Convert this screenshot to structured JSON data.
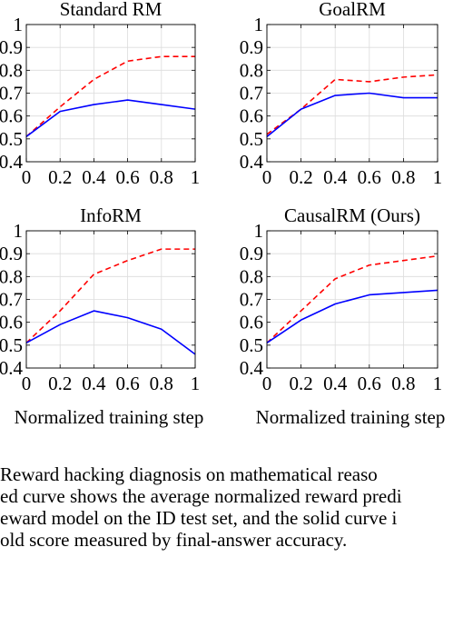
{
  "chart_data": [
    {
      "type": "line",
      "title": "Standard RM",
      "xlabel": "",
      "x": [
        0,
        0.2,
        0.4,
        0.6,
        0.8,
        1
      ],
      "xticks": [
        "0",
        "0.2",
        "0.4",
        "0.6",
        "0.8",
        "1"
      ],
      "yticks": [
        "0.4",
        "0.5",
        "0.6",
        "0.7",
        "0.8",
        "0.9",
        "1"
      ],
      "xlim": [
        0,
        1
      ],
      "ylim": [
        0.4,
        1
      ],
      "grid": true,
      "series": [
        {
          "style": "dashed",
          "color": "#ff0000",
          "values": [
            0.51,
            0.64,
            0.76,
            0.84,
            0.86,
            0.86
          ]
        },
        {
          "style": "solid",
          "color": "#0000ff",
          "values": [
            0.51,
            0.62,
            0.65,
            0.67,
            0.65,
            0.63
          ]
        }
      ]
    },
    {
      "type": "line",
      "title": "GoalRM",
      "xlabel": "",
      "x": [
        0,
        0.2,
        0.4,
        0.6,
        0.8,
        1
      ],
      "xticks": [
        "0",
        "0.2",
        "0.4",
        "0.6",
        "0.8",
        "1"
      ],
      "yticks": [
        "0.4",
        "0.5",
        "0.6",
        "0.7",
        "0.8",
        "0.9",
        "1"
      ],
      "xlim": [
        0,
        1
      ],
      "ylim": [
        0.4,
        1
      ],
      "grid": true,
      "series": [
        {
          "style": "dashed",
          "color": "#ff0000",
          "values": [
            0.52,
            0.63,
            0.76,
            0.75,
            0.77,
            0.78
          ]
        },
        {
          "style": "solid",
          "color": "#0000ff",
          "values": [
            0.51,
            0.63,
            0.69,
            0.7,
            0.68,
            0.68
          ]
        }
      ]
    },
    {
      "type": "line",
      "title": "InfoRM",
      "xlabel": "Normalized training step",
      "x": [
        0,
        0.2,
        0.4,
        0.6,
        0.8,
        1
      ],
      "xticks": [
        "0",
        "0.2",
        "0.4",
        "0.6",
        "0.8",
        "1"
      ],
      "yticks": [
        "0.4",
        "0.5",
        "0.6",
        "0.7",
        "0.8",
        "0.9",
        "1"
      ],
      "xlim": [
        0,
        1
      ],
      "ylim": [
        0.4,
        1
      ],
      "grid": true,
      "series": [
        {
          "style": "dashed",
          "color": "#ff0000",
          "values": [
            0.51,
            0.65,
            0.81,
            0.87,
            0.92,
            0.92
          ]
        },
        {
          "style": "solid",
          "color": "#0000ff",
          "values": [
            0.51,
            0.59,
            0.65,
            0.62,
            0.57,
            0.46
          ]
        }
      ]
    },
    {
      "type": "line",
      "title": "CausalRM (Ours)",
      "xlabel": "Normalized training step",
      "x": [
        0,
        0.2,
        0.4,
        0.6,
        0.8,
        1
      ],
      "xticks": [
        "0",
        "0.2",
        "0.4",
        "0.6",
        "0.8",
        "1"
      ],
      "yticks": [
        "0.4",
        "0.5",
        "0.6",
        "0.7",
        "0.8",
        "0.9",
        "1"
      ],
      "xlim": [
        0,
        1
      ],
      "ylim": [
        0.4,
        1
      ],
      "grid": true,
      "series": [
        {
          "style": "dashed",
          "color": "#ff0000",
          "values": [
            0.51,
            0.65,
            0.79,
            0.85,
            0.87,
            0.89
          ]
        },
        {
          "style": "solid",
          "color": "#0000ff",
          "values": [
            0.51,
            0.61,
            0.68,
            0.72,
            0.73,
            0.74
          ]
        }
      ]
    }
  ],
  "caption": [
    " Reward hacking diagnosis on mathematical reaso",
    "ed curve shows the average normalized reward predi",
    "eward model on the ID test set, and the solid curve i",
    "old score measured by final-answer accuracy."
  ]
}
